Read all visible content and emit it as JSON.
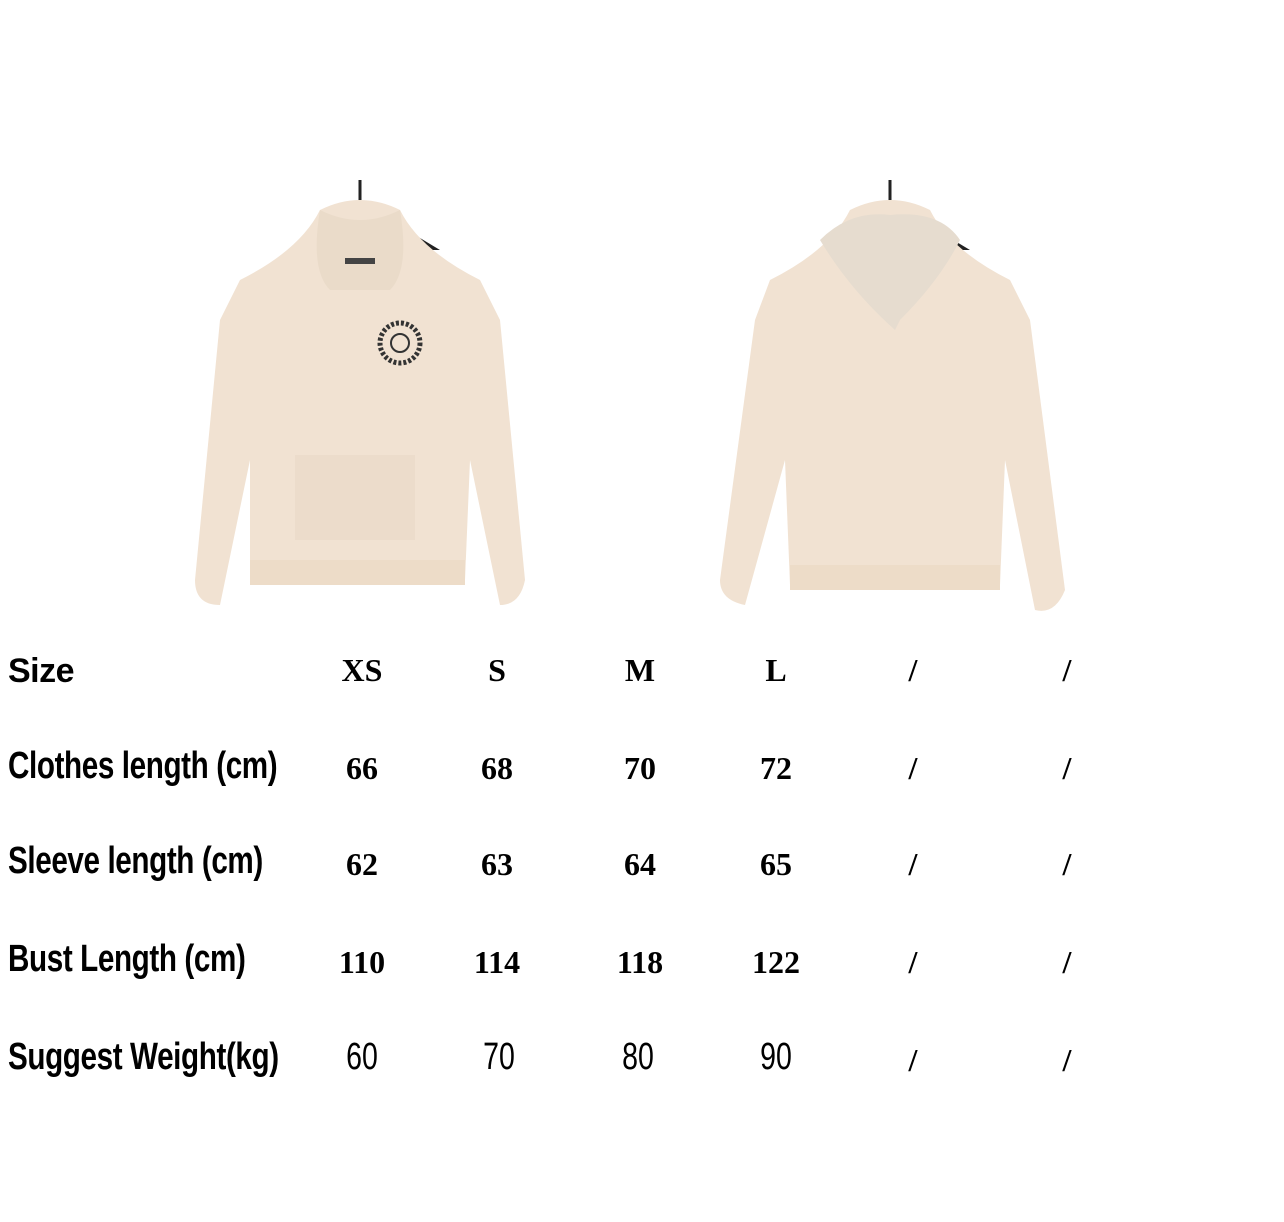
{
  "colors": {
    "hoodie": "#f1e2d2",
    "hood_inner": "#e6dccf",
    "hanger": "#222222",
    "logo": "#333333"
  },
  "photos": [
    {
      "view": "front",
      "icon": "hoodie-front-image"
    },
    {
      "view": "back",
      "icon": "hoodie-back-image"
    }
  ],
  "table": {
    "header": {
      "label": "Size",
      "values": [
        "XS",
        "S",
        "M",
        "L",
        "/",
        "/"
      ]
    },
    "rows": [
      {
        "label": "Clothes length  (cm)",
        "values": [
          "66",
          "68",
          "70",
          "72",
          "/",
          "/"
        ]
      },
      {
        "label": "Sleeve length (cm)",
        "values": [
          "62",
          "63",
          "64",
          "65",
          "/",
          "/"
        ]
      },
      {
        "label": "Bust Length  (cm)",
        "values": [
          "110",
          "114",
          "118",
          "122",
          "/",
          "/"
        ]
      },
      {
        "label": "Suggest Weight(kg)",
        "values": [
          "60",
          "70",
          "80",
          "90",
          "/",
          "/"
        ]
      }
    ]
  }
}
